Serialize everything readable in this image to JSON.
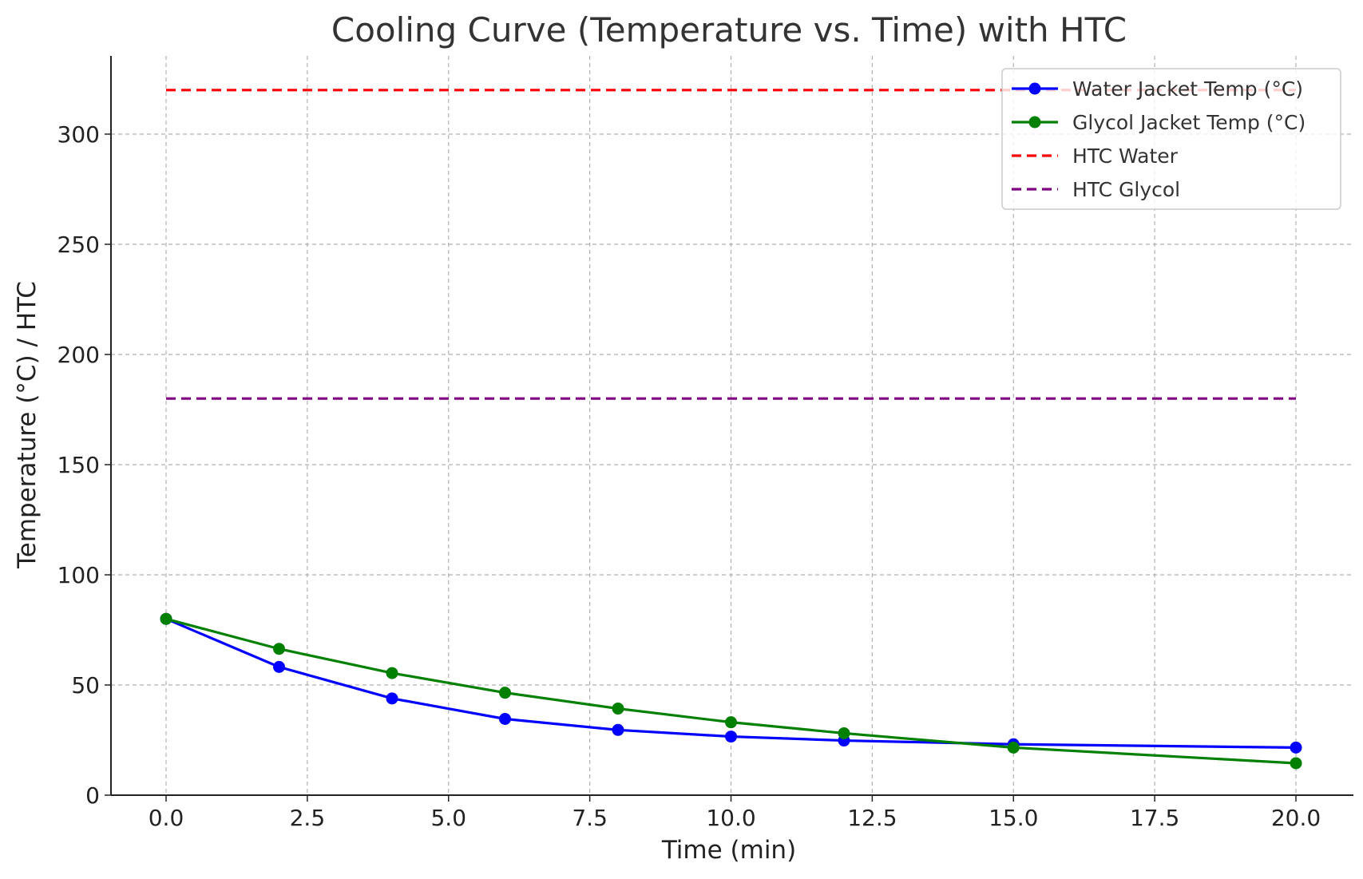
{
  "chart_data": {
    "type": "line",
    "title": "Cooling Curve (Temperature vs. Time) with HTC",
    "xlabel": "Time (min)",
    "ylabel": "Temperature (°C) / HTC",
    "xlim": [
      -1,
      21
    ],
    "ylim": [
      0,
      336
    ],
    "x_ticks": [
      0.0,
      2.5,
      5.0,
      7.5,
      10.0,
      12.5,
      15.0,
      17.5,
      20.0
    ],
    "x_tick_labels": [
      "0.0",
      "2.5",
      "5.0",
      "7.5",
      "10.0",
      "12.5",
      "15.0",
      "17.5",
      "20.0"
    ],
    "y_ticks": [
      0,
      50,
      100,
      150,
      200,
      250,
      300
    ],
    "y_tick_labels": [
      "0",
      "50",
      "100",
      "150",
      "200",
      "250",
      "300"
    ],
    "grid": true,
    "legend_position": "top-right",
    "series": [
      {
        "name": "Water Jacket Temp (°C)",
        "color": "#0000ff",
        "style": "solid",
        "marker": "circle",
        "x": [
          0,
          2,
          4,
          6,
          8,
          10,
          12,
          15,
          20
        ],
        "y": [
          80,
          58.2,
          43.9,
          34.6,
          29.6,
          26.6,
          24.8,
          23.1,
          21.6
        ]
      },
      {
        "name": "Glycol Jacket Temp (°C)",
        "color": "#008000",
        "style": "solid",
        "marker": "circle",
        "x": [
          0,
          2,
          4,
          6,
          8,
          10,
          12,
          15,
          20
        ],
        "y": [
          80,
          66.4,
          55.4,
          46.5,
          39.3,
          33.1,
          28.1,
          21.6,
          14.5
        ]
      },
      {
        "name": "HTC Water",
        "color": "#ff0000",
        "style": "dashed",
        "marker": "none",
        "x": [
          0,
          20
        ],
        "y": [
          320,
          320
        ]
      },
      {
        "name": "HTC Glycol",
        "color": "#800080",
        "style": "dashed",
        "marker": "none",
        "x": [
          0,
          20
        ],
        "y": [
          180,
          180
        ]
      }
    ]
  }
}
